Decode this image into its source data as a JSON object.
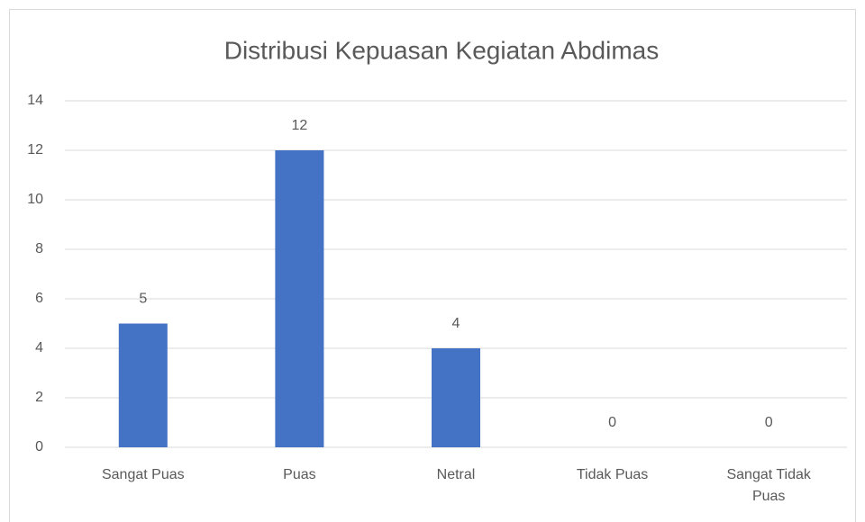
{
  "chart_data": {
    "type": "bar",
    "title": "Distribusi Kepuasan Kegiatan Abdimas",
    "categories": [
      "Sangat Puas",
      "Puas",
      "Netral",
      "Tidak Puas",
      "Sangat Tidak Puas"
    ],
    "values": [
      5,
      12,
      4,
      0,
      0
    ],
    "color": "#4472c4",
    "ylim": [
      0,
      14
    ],
    "yticks": [
      0,
      2,
      4,
      6,
      8,
      10,
      12,
      14
    ],
    "grid": true,
    "data_labels": true
  }
}
